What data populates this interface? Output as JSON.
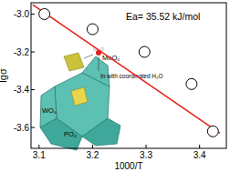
{
  "chart_data": {
    "type": "scatter",
    "x_label": "1000/T",
    "y_label": "lgσ",
    "annotation": "Ea= 35.52 kJ/mol",
    "inset_labels": [
      "MoO₆",
      "In with coordinated H₂O",
      "WO₆",
      "PO₄"
    ],
    "xlim": [
      3.085,
      3.45
    ],
    "xticks": [
      3.1,
      3.2,
      3.3,
      3.4
    ],
    "ylim": [
      -3.71,
      -2.94
    ],
    "yticks": [
      {
        "value": -3.0,
        "label": "-3.0"
      },
      -3.2,
      -3.4,
      -3.6
    ],
    "grid": false,
    "series": [
      {
        "type": "scatter",
        "marker": "circle",
        "color": "#000000",
        "x": [
          3.11,
          3.2,
          3.297,
          3.385,
          3.425
        ],
        "values": [
          -3.0,
          -3.08,
          -3.2,
          -3.37,
          -3.62
        ]
      },
      {
        "type": "line",
        "line_style": "solid",
        "color": "#e8221b",
        "x": [
          3.088,
          3.438
        ],
        "values": [
          -2.95,
          -3.63
        ]
      }
    ]
  }
}
